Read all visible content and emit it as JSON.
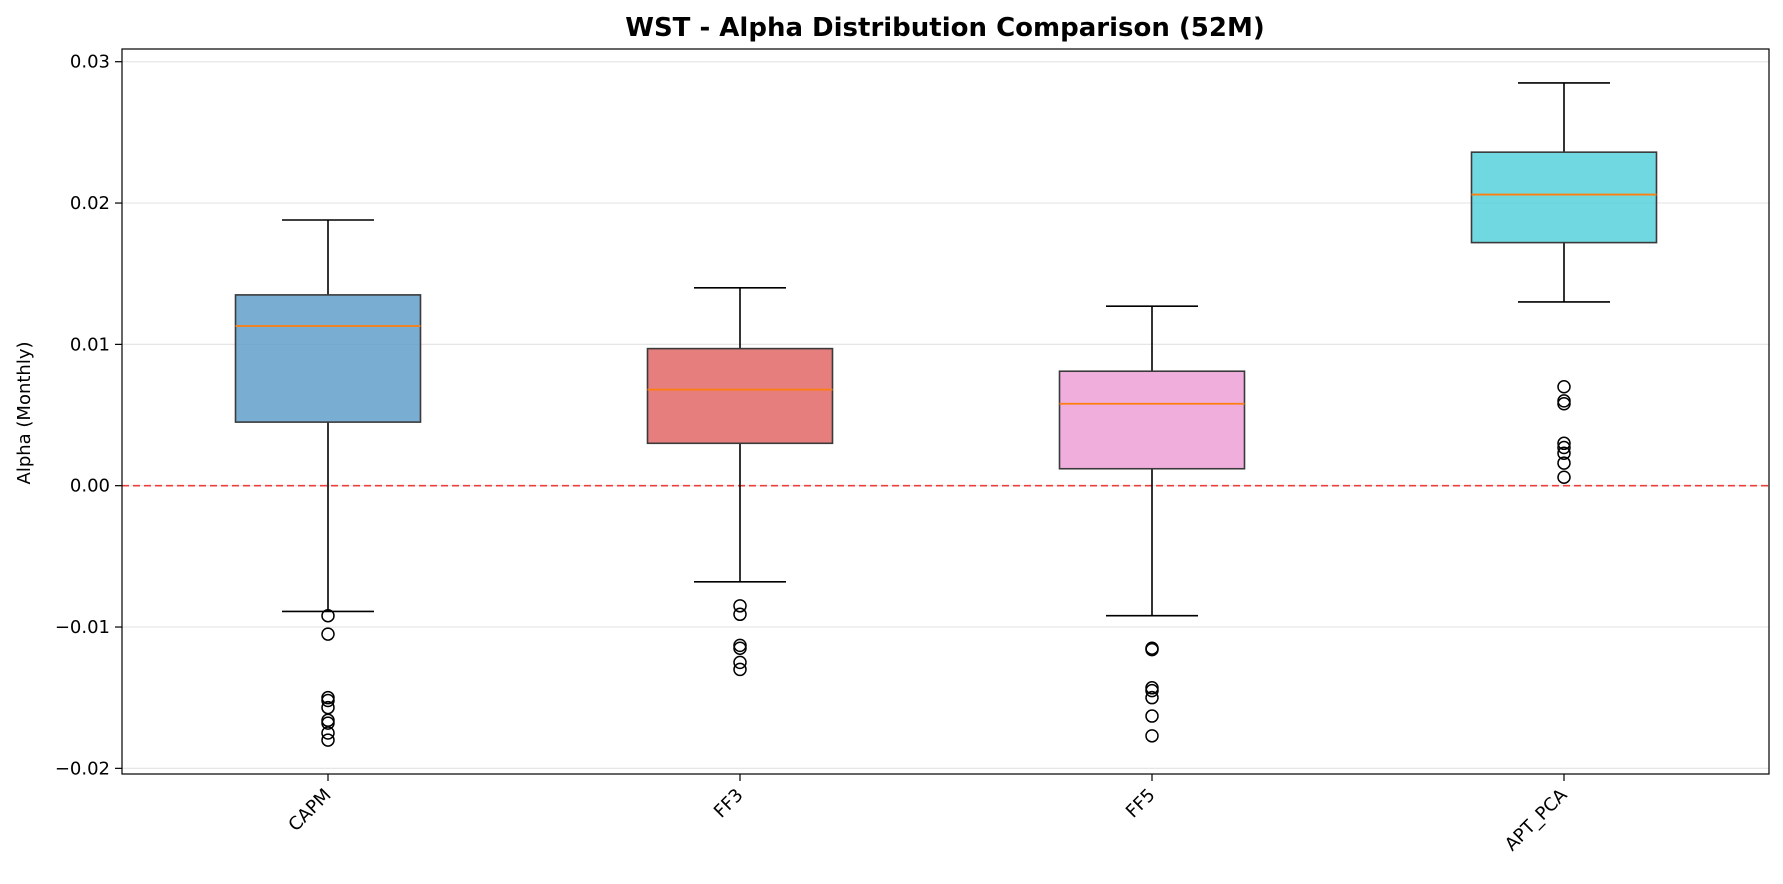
{
  "chart_data": {
    "type": "box",
    "title": "WST - Alpha Distribution Comparison (52M)",
    "xlabel": "",
    "ylabel": "Alpha (Monthly)",
    "ylim": [
      -0.0204,
      0.0309
    ],
    "yticks": [
      -0.02,
      -0.01,
      0.0,
      0.01,
      0.02,
      0.03
    ],
    "ytick_labels": [
      "−0.02",
      "−0.01",
      "0.00",
      "0.01",
      "0.02",
      "0.03"
    ],
    "grid": "horizontal",
    "reference_line": {
      "y": 0.0,
      "style": "dashed",
      "color": "#e8413c"
    },
    "categories": [
      "CAPM",
      "FF3",
      "FF5",
      "APT_PCA"
    ],
    "boxes": [
      {
        "name": "CAPM",
        "color": "#5b9bc8",
        "whisker_low": -0.0089,
        "q1": 0.0045,
        "median": 0.0113,
        "q3": 0.0135,
        "whisker_high": 0.0188,
        "outliers": [
          -0.0092,
          -0.0105,
          -0.015,
          -0.0152,
          -0.0157,
          -0.0166,
          -0.0168,
          -0.0175,
          -0.018
        ]
      },
      {
        "name": "FF3",
        "color": "#e06262",
        "whisker_low": -0.0068,
        "q1": 0.003,
        "median": 0.0068,
        "q3": 0.0097,
        "whisker_high": 0.014,
        "outliers": [
          -0.0085,
          -0.0091,
          -0.0113,
          -0.0115,
          -0.0125,
          -0.013
        ]
      },
      {
        "name": "FF5",
        "color": "#eb9cd4",
        "whisker_low": -0.0092,
        "q1": 0.0012,
        "median": 0.0058,
        "q3": 0.0081,
        "whisker_high": 0.0127,
        "outliers": [
          -0.0115,
          -0.0116,
          -0.0143,
          -0.0145,
          -0.015,
          -0.0163,
          -0.0177
        ]
      },
      {
        "name": "APT_PCA",
        "color": "#4fd0da",
        "whisker_low": 0.013,
        "q1": 0.0172,
        "median": 0.0206,
        "q3": 0.0236,
        "whisker_high": 0.0285,
        "outliers": [
          0.007,
          0.006,
          0.0058,
          0.003,
          0.0027,
          0.0023,
          0.0016,
          0.0006
        ]
      }
    ],
    "median_color": "#ff7f0e"
  }
}
